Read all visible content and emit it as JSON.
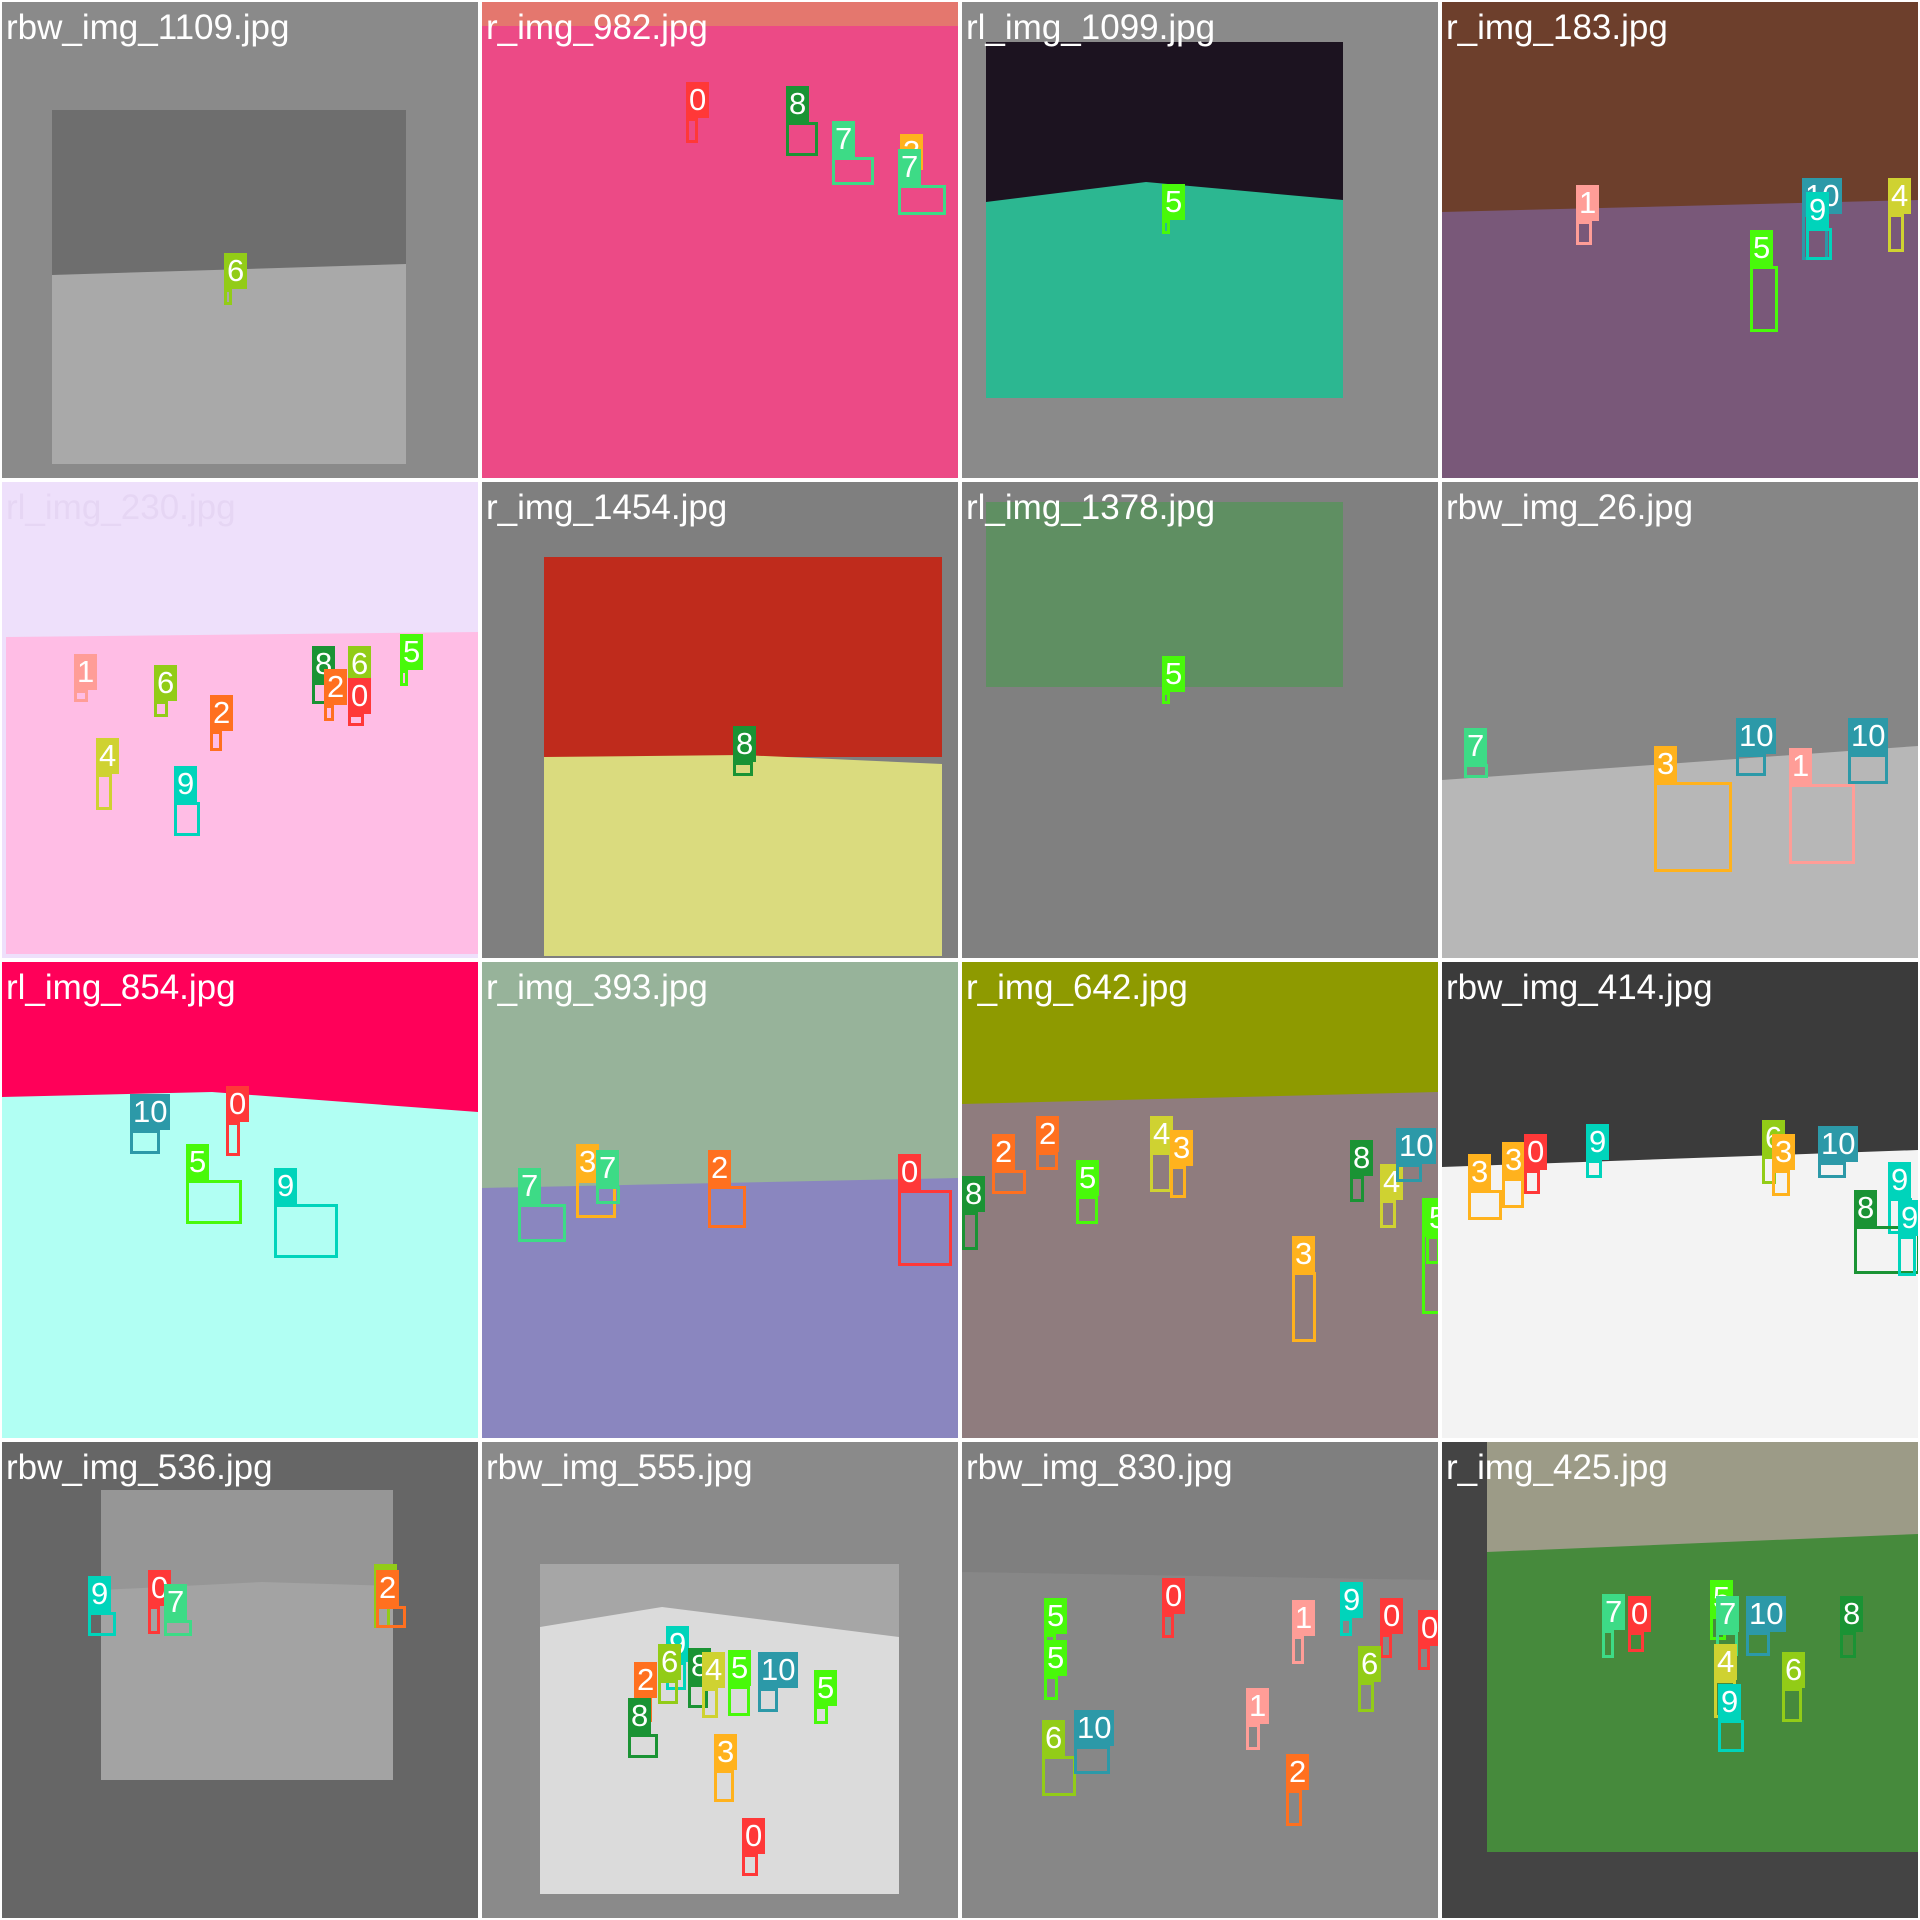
{
  "grid": {
    "rows": 4,
    "cols": 4,
    "tiles": [
      {
        "title": "rbw_img_1109.jpg",
        "background": "#8a8a8a",
        "title_color": "#ffffff",
        "dets": [
          {
            "cls": "6"
          }
        ]
      },
      {
        "title": "r_img_982.jpg",
        "background": "#ec4a86",
        "title_color": "#ffffff",
        "dets": [
          {
            "cls": "0"
          },
          {
            "cls": "8"
          },
          {
            "cls": "7"
          },
          {
            "cls": "3"
          },
          {
            "cls": "7"
          }
        ]
      },
      {
        "title": "rl_img_1099.jpg",
        "background": "#8a8a8a",
        "title_color": "#ffffff",
        "dets": [
          {
            "cls": "5"
          }
        ]
      },
      {
        "title": "r_img_183.jpg",
        "background": "#6d3f2c",
        "title_color": "#ffffff",
        "dets": [
          {
            "cls": "1"
          },
          {
            "cls": "10"
          },
          {
            "cls": "9"
          },
          {
            "cls": "4"
          },
          {
            "cls": "5"
          }
        ]
      },
      {
        "title": "rl_img_230.jpg",
        "background": "#eee0fb",
        "title_color": "#e6d6f4",
        "dets": [
          {
            "cls": "1"
          },
          {
            "cls": "6"
          },
          {
            "cls": "2"
          },
          {
            "cls": "8"
          },
          {
            "cls": "6"
          },
          {
            "cls": "2"
          },
          {
            "cls": "0"
          },
          {
            "cls": "5"
          },
          {
            "cls": "4"
          },
          {
            "cls": "9"
          }
        ]
      },
      {
        "title": "r_img_1454.jpg",
        "background": "#7f7f7f",
        "title_color": "#ffffff",
        "dets": [
          {
            "cls": "8"
          }
        ]
      },
      {
        "title": "rl_img_1378.jpg",
        "background": "#808080",
        "title_color": "#ffffff",
        "dets": [
          {
            "cls": "5"
          }
        ]
      },
      {
        "title": "rbw_img_26.jpg",
        "background": "#868686",
        "title_color": "#ffffff",
        "dets": [
          {
            "cls": "7"
          },
          {
            "cls": "10"
          },
          {
            "cls": "10"
          },
          {
            "cls": "3"
          },
          {
            "cls": "1"
          }
        ]
      },
      {
        "title": "rl_img_854.jpg",
        "background": "#ff0059",
        "title_color": "#ffffff",
        "dets": [
          {
            "cls": "10"
          },
          {
            "cls": "0"
          },
          {
            "cls": "5"
          },
          {
            "cls": "9"
          }
        ]
      },
      {
        "title": "r_img_393.jpg",
        "background": "#97b39a",
        "title_color": "#ffffff",
        "dets": [
          {
            "cls": "7"
          },
          {
            "cls": "3"
          },
          {
            "cls": "7"
          },
          {
            "cls": "2"
          },
          {
            "cls": "0"
          }
        ]
      },
      {
        "title": "r_img_642.jpg",
        "background": "#8e9a00",
        "title_color": "#ffffff",
        "dets": [
          {
            "cls": "8"
          },
          {
            "cls": "2"
          },
          {
            "cls": "2"
          },
          {
            "cls": "4"
          },
          {
            "cls": "3"
          },
          {
            "cls": "5"
          },
          {
            "cls": "8"
          },
          {
            "cls": "4"
          },
          {
            "cls": "10"
          },
          {
            "cls": "3"
          },
          {
            "cls": "5"
          },
          {
            "cls": "5"
          }
        ]
      },
      {
        "title": "rbw_img_414.jpg",
        "background": "#3b3b3b",
        "title_color": "#ffffff",
        "dets": [
          {
            "cls": "3"
          },
          {
            "cls": "3"
          },
          {
            "cls": "0"
          },
          {
            "cls": "9"
          },
          {
            "cls": "6"
          },
          {
            "cls": "3"
          },
          {
            "cls": "10"
          },
          {
            "cls": "9"
          },
          {
            "cls": "8"
          },
          {
            "cls": "9"
          }
        ]
      },
      {
        "title": "rbw_img_536.jpg",
        "background": "#666666",
        "title_color": "#ffffff",
        "dets": [
          {
            "cls": "9"
          },
          {
            "cls": "0"
          },
          {
            "cls": "7"
          },
          {
            "cls": "6"
          },
          {
            "cls": "2"
          }
        ]
      },
      {
        "title": "rbw_img_555.jpg",
        "background": "#8a8a8a",
        "title_color": "#ffffff",
        "dets": [
          {
            "cls": "9"
          },
          {
            "cls": "2"
          },
          {
            "cls": "6"
          },
          {
            "cls": "8"
          },
          {
            "cls": "8"
          },
          {
            "cls": "4"
          },
          {
            "cls": "5"
          },
          {
            "cls": "10"
          },
          {
            "cls": "5"
          },
          {
            "cls": "3"
          },
          {
            "cls": "0"
          }
        ]
      },
      {
        "title": "rbw_img_830.jpg",
        "background": "#7f7f7f",
        "title_color": "#ffffff",
        "dets": [
          {
            "cls": "5"
          },
          {
            "cls": "5"
          },
          {
            "cls": "0"
          },
          {
            "cls": "1"
          },
          {
            "cls": "9"
          },
          {
            "cls": "0"
          },
          {
            "cls": "0"
          },
          {
            "cls": "6"
          },
          {
            "cls": "6"
          },
          {
            "cls": "10"
          },
          {
            "cls": "1"
          },
          {
            "cls": "2"
          }
        ]
      },
      {
        "title": "r_img_425.jpg",
        "background": "#444444",
        "title_color": "#ffffff",
        "dets": [
          {
            "cls": "7"
          },
          {
            "cls": "0"
          },
          {
            "cls": "5"
          },
          {
            "cls": "7"
          },
          {
            "cls": "10"
          },
          {
            "cls": "8"
          },
          {
            "cls": "4"
          },
          {
            "cls": "6"
          },
          {
            "cls": "9"
          }
        ]
      }
    ]
  },
  "class_colors": {
    "0": "#ff3838",
    "1": "#ff9d97",
    "2": "#ff701f",
    "3": "#ffb21d",
    "4": "#cfd231",
    "5": "#48f90a",
    "6": "#92cc17",
    "7": "#3ddb86",
    "8": "#1a9334",
    "9": "#00d4bb",
    "10": "#2c99a8"
  }
}
